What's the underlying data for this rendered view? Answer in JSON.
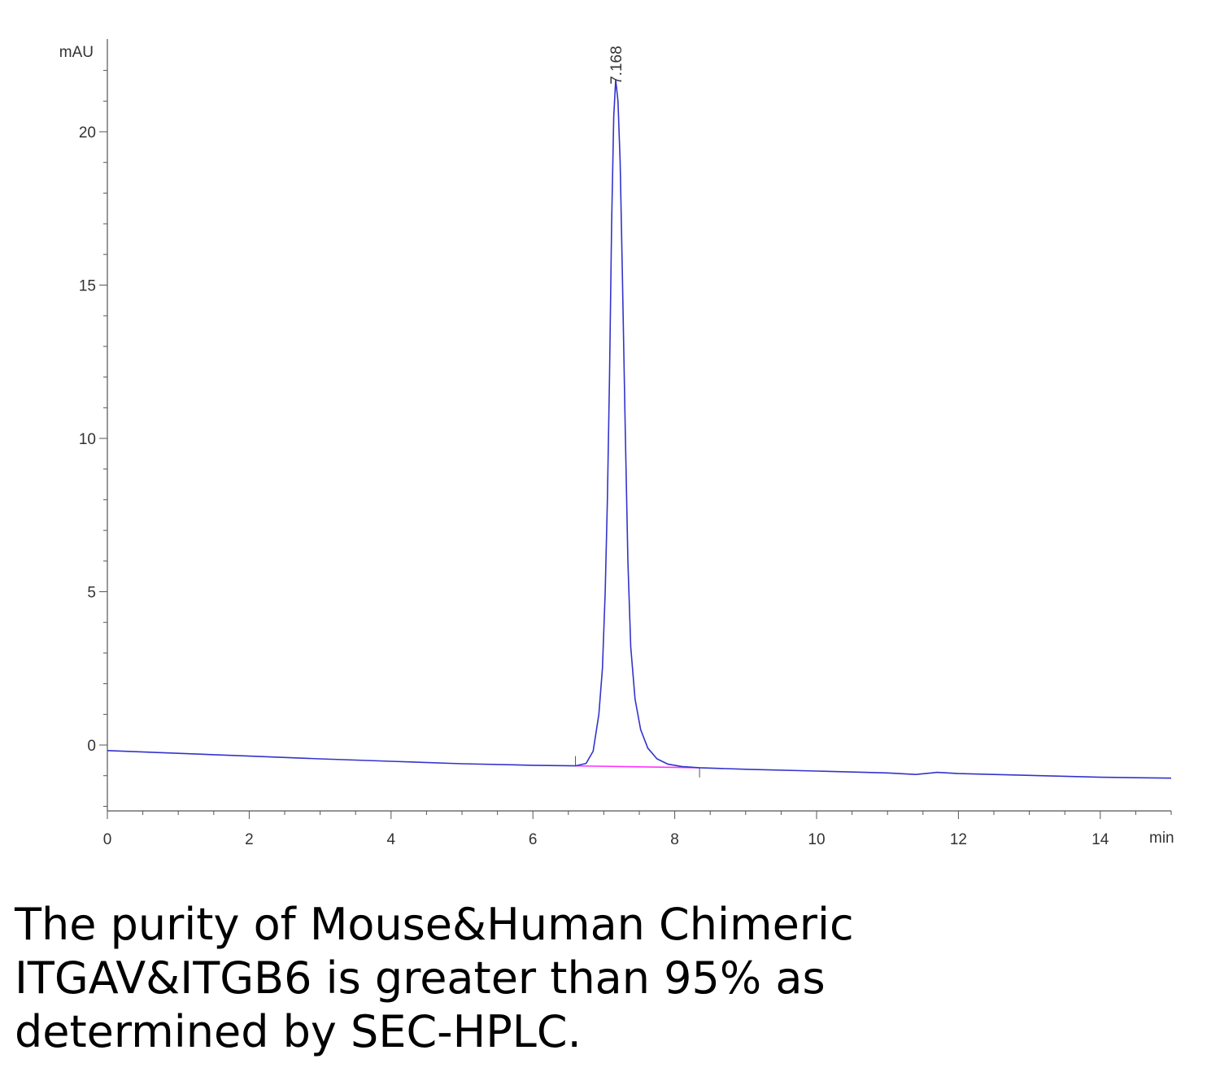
{
  "chart_data": {
    "type": "line",
    "title": "",
    "xlabel": "min",
    "ylabel": "mAU",
    "xlim": [
      0,
      15
    ],
    "ylim": [
      -2.2,
      23
    ],
    "x_ticks": [
      0,
      2,
      4,
      6,
      8,
      10,
      12,
      14
    ],
    "x_tick_labels": [
      "0",
      "2",
      "4",
      "6",
      "8",
      "10",
      "12",
      "14"
    ],
    "y_ticks": [
      0,
      5,
      10,
      15,
      20
    ],
    "y_tick_labels": [
      "0",
      "5",
      "10",
      "15",
      "20"
    ],
    "grid": false,
    "series": [
      {
        "color": "#3333cc",
        "points": [
          [
            0,
            -0.18
          ],
          [
            1,
            -0.27
          ],
          [
            2,
            -0.36
          ],
          [
            3,
            -0.45
          ],
          [
            4,
            -0.53
          ],
          [
            5,
            -0.61
          ],
          [
            6,
            -0.66
          ],
          [
            6.6,
            -0.68
          ],
          [
            6.75,
            -0.6
          ],
          [
            6.85,
            -0.2
          ],
          [
            6.93,
            1.0
          ],
          [
            6.98,
            2.5
          ],
          [
            7.02,
            5.0
          ],
          [
            7.05,
            8.0
          ],
          [
            7.08,
            12.0
          ],
          [
            7.11,
            17.0
          ],
          [
            7.14,
            20.5
          ],
          [
            7.168,
            21.7
          ],
          [
            7.2,
            21.0
          ],
          [
            7.23,
            19.0
          ],
          [
            7.26,
            15.5
          ],
          [
            7.3,
            10.5
          ],
          [
            7.34,
            6.0
          ],
          [
            7.38,
            3.2
          ],
          [
            7.44,
            1.5
          ],
          [
            7.52,
            0.5
          ],
          [
            7.62,
            -0.1
          ],
          [
            7.75,
            -0.45
          ],
          [
            7.9,
            -0.62
          ],
          [
            8.1,
            -0.7
          ],
          [
            8.35,
            -0.74
          ],
          [
            9,
            -0.79
          ],
          [
            10,
            -0.85
          ],
          [
            11,
            -0.91
          ],
          [
            11.4,
            -0.96
          ],
          [
            11.7,
            -0.89
          ],
          [
            12,
            -0.93
          ],
          [
            13,
            -0.99
          ],
          [
            14,
            -1.05
          ],
          [
            15,
            -1.08
          ]
        ]
      }
    ],
    "baseline": {
      "color": "#ff33ff",
      "x_start": 6.6,
      "x_end": 8.35
    },
    "peaks": [
      {
        "retention_time": 7.168,
        "label": "7.168",
        "height": 21.7
      }
    ]
  },
  "caption": {
    "lines": [
      "The purity of Mouse&Human Chimeric",
      "ITGAV&ITGB6 is greater than 95% as",
      "determined by SEC-HPLC."
    ]
  }
}
